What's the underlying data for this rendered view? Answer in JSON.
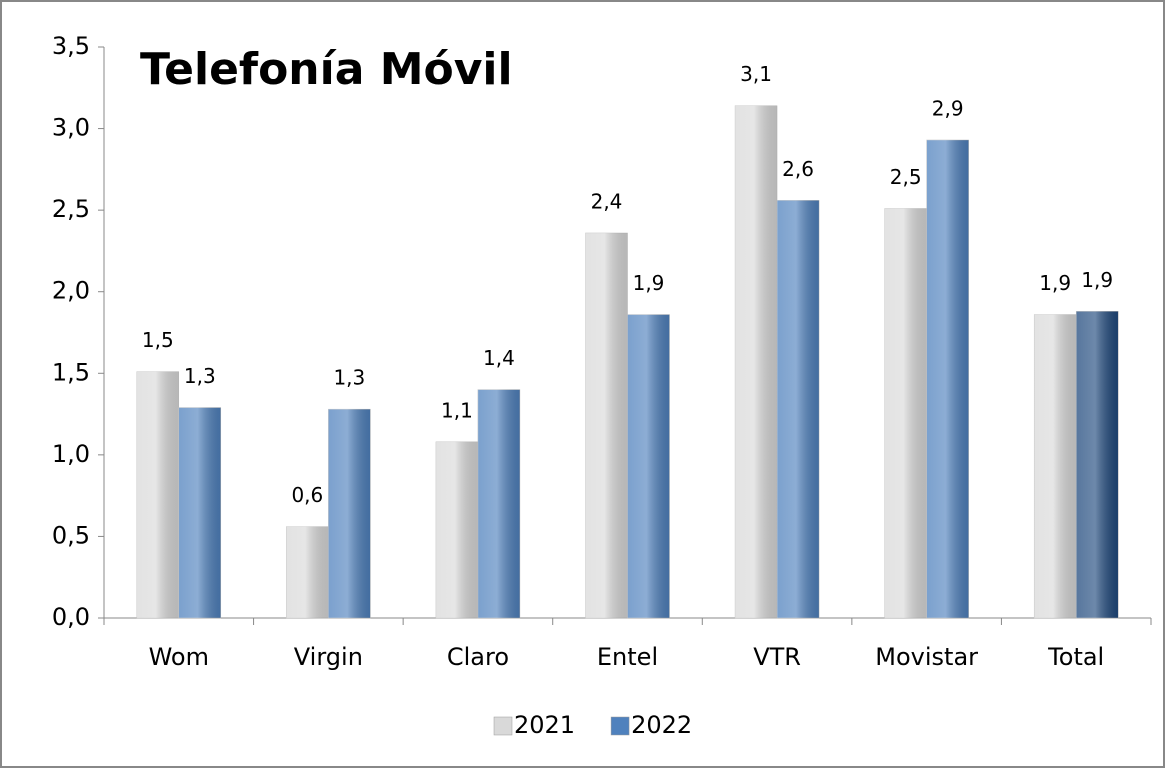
{
  "chart_data": {
    "type": "bar",
    "title": "Telefonía Móvil",
    "categories": [
      "Wom",
      "Virgin",
      "Claro",
      "Entel",
      "VTR",
      "Movistar",
      "Total"
    ],
    "series": [
      {
        "name": "2021",
        "color": "#d9d9d9",
        "values": [
          1.51,
          0.56,
          1.08,
          2.36,
          3.14,
          2.51,
          1.86
        ],
        "value_labels": [
          "1,5",
          "0,6",
          "1,1",
          "2,4",
          "3,1",
          "2,5",
          "1,9"
        ]
      },
      {
        "name": "2022",
        "color": "#4f81bd",
        "colors": [
          "#4f81bd",
          "#4f81bd",
          "#4f81bd",
          "#4f81bd",
          "#4f81bd",
          "#4f81bd",
          "#1f497d"
        ],
        "values": [
          1.29,
          1.28,
          1.4,
          1.86,
          2.56,
          2.93,
          1.88
        ],
        "value_labels": [
          "1,3",
          "1,3",
          "1,4",
          "1,9",
          "2,6",
          "2,9",
          "1,9"
        ]
      }
    ],
    "ylim": [
      0,
      3.5
    ],
    "yticks": [
      {
        "value": 0,
        "label": "0,0"
      },
      {
        "value": 0.5,
        "label": "0,5"
      },
      {
        "value": 1,
        "label": "1,0"
      },
      {
        "value": 1.5,
        "label": "1,5"
      },
      {
        "value": 2,
        "label": "2,0"
      },
      {
        "value": 2.5,
        "label": "2,5"
      },
      {
        "value": 3,
        "label": "3,0"
      },
      {
        "value": 3.5,
        "label": "3,5"
      }
    ],
    "legend": "bottom",
    "grid": false
  }
}
